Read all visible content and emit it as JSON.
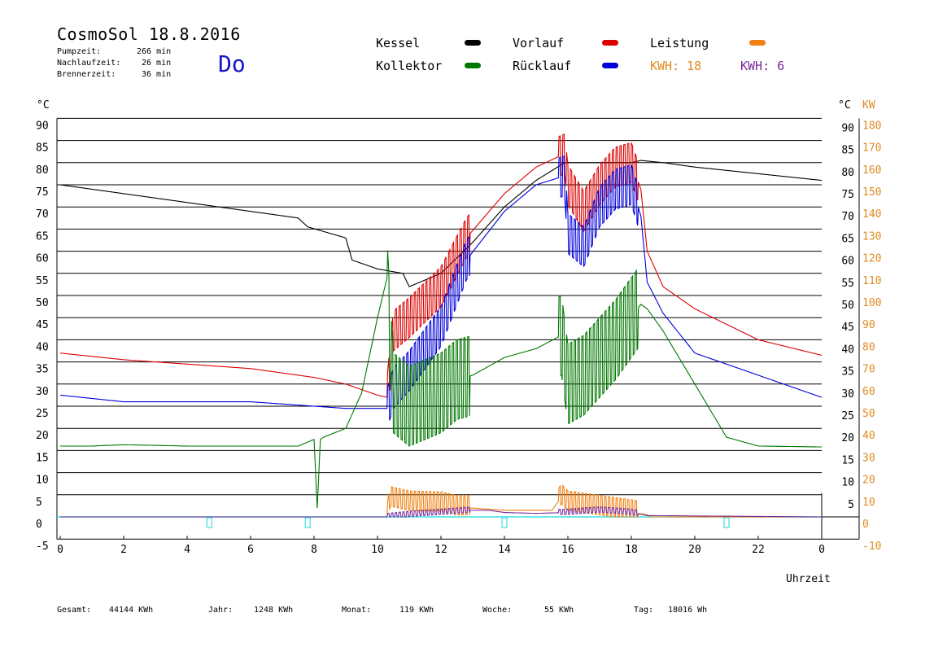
{
  "header": {
    "title": "CosmoSol 18.8.2016",
    "day": "Do",
    "stats": [
      {
        "label": "Pumpzeit:",
        "value": "266 min"
      },
      {
        "label": "Nachlaufzeit:",
        "value": "26 min"
      },
      {
        "label": "Brennerzeit:",
        "value": "36 min"
      }
    ]
  },
  "legend": {
    "items": [
      {
        "label": "Kessel",
        "color": "#000000"
      },
      {
        "label": "Vorlauf",
        "color": "#dd0000"
      },
      {
        "label": "Leistung",
        "color": "#f08010"
      },
      {
        "label": "Kollektor",
        "color": "#007700"
      },
      {
        "label": "Rücklauf",
        "color": "#0000dd"
      }
    ],
    "kwh1": {
      "text": "KWH: 18",
      "color": "#e08a20"
    },
    "kwh2": {
      "text": "KWH: 6",
      "color": "#7a2a9a"
    }
  },
  "footer": [
    {
      "label": "Gesamt:",
      "value": "44144 KWh"
    },
    {
      "label": "Jahr:",
      "value": "1248 KWh"
    },
    {
      "label": "Monat:",
      "value": "119 KWh"
    },
    {
      "label": "Woche:",
      "value": "55 KWh"
    },
    {
      "label": "Tag:",
      "value": "18016 Wh"
    }
  ],
  "chart_data": {
    "type": "line",
    "xlabel": "Uhrzeit",
    "ylabel_left": "°C",
    "ylabel_right_1": "°C",
    "ylabel_right_2": "KW",
    "xlim": [
      0,
      24
    ],
    "ylim": [
      -5,
      90
    ],
    "ylim_right_kw": [
      -10,
      180
    ],
    "x_ticks": [
      "0",
      "2",
      "4",
      "6",
      "8",
      "10",
      "12",
      "14",
      "16",
      "18",
      "20",
      "22",
      "0"
    ],
    "y_ticks_left": [
      "90",
      "85",
      "80",
      "75",
      "70",
      "65",
      "60",
      "55",
      "50",
      "45",
      "40",
      "35",
      "30",
      "25",
      "20",
      "15",
      "10",
      "5",
      "0",
      "-5"
    ],
    "y_ticks_right_c": [
      "90",
      "85",
      "80",
      "75",
      "70",
      "65",
      "60",
      "55",
      "50",
      "45",
      "40",
      "35",
      "30",
      "25",
      "20",
      "15",
      "10",
      "5"
    ],
    "y_ticks_right_kw": [
      "180",
      "170",
      "160",
      "150",
      "140",
      "130",
      "120",
      "110",
      "100",
      "90",
      "80",
      "70",
      "60",
      "50",
      "40",
      "30",
      "20",
      "10",
      "0",
      "-10"
    ],
    "grid": "horizontal",
    "series": [
      {
        "name": "Kessel",
        "color": "#000000",
        "x": [
          0,
          2,
          4,
          6,
          7.5,
          7.8,
          9,
          9.2,
          10,
          10.8,
          11,
          12,
          13,
          14,
          15,
          15.9,
          16.2,
          17,
          18,
          18.3,
          19,
          20,
          22,
          24
        ],
        "y": [
          75,
          73,
          71,
          69,
          67.5,
          65.5,
          63,
          58,
          56,
          55,
          52,
          55,
          62,
          70,
          76,
          80,
          80,
          80,
          80,
          80.5,
          80,
          79,
          77.5,
          76
        ]
      },
      {
        "name": "Vorlauf",
        "color": "#dd0000",
        "x": [
          0,
          2,
          4,
          6,
          8,
          9,
          10,
          10.3,
          10.5,
          11,
          12,
          12.8,
          14,
          15,
          15.9,
          16,
          16.5,
          17,
          17.5,
          18,
          18.3,
          18.5,
          19,
          20,
          22,
          24
        ],
        "y": [
          37,
          35.5,
          34.5,
          33.5,
          31.5,
          30,
          27.5,
          27,
          42,
          45,
          52,
          63,
          73,
          79,
          82,
          75,
          69,
          75,
          79,
          80,
          74,
          60,
          52,
          47,
          40,
          36.5
        ]
      },
      {
        "name": "Rücklauf",
        "color": "#0000dd",
        "x": [
          0,
          2,
          4,
          6,
          8,
          9,
          10,
          10.3,
          10.5,
          11,
          12,
          12.8,
          14,
          15,
          15.9,
          16,
          16.5,
          17,
          17.5,
          18,
          18.3,
          18.5,
          19,
          20,
          22,
          24
        ],
        "y": [
          27.5,
          26,
          26,
          26,
          25,
          24.5,
          24.5,
          24.5,
          29,
          33,
          43,
          58,
          69,
          75,
          77,
          64,
          61,
          70,
          74,
          75,
          68,
          53,
          46,
          37,
          32,
          27
        ]
      },
      {
        "name": "Kollektor",
        "color": "#007700",
        "x": [
          0,
          1,
          2,
          4,
          6,
          7.5,
          8,
          8.1,
          8.2,
          8.3,
          9,
          9.5,
          10,
          10.3,
          10.4,
          10.5,
          11,
          12,
          12.5,
          13,
          14,
          15,
          15.8,
          16,
          16.5,
          17,
          17.5,
          18,
          18.3,
          18.5,
          19,
          20,
          21,
          22,
          24
        ],
        "y": [
          16,
          16,
          16.3,
          16,
          16,
          16,
          17.5,
          2,
          17.5,
          18,
          20,
          28,
          45,
          54,
          40,
          28,
          25,
          28,
          31,
          32,
          36,
          38,
          41,
          30,
          32,
          36,
          40,
          45,
          48,
          47,
          42,
          30,
          18,
          16,
          15.8
        ]
      },
      {
        "name": "Leistung",
        "color": "#f08010",
        "x": [
          0,
          10.3,
          10.4,
          11,
          12,
          12.5,
          13,
          14,
          15.5,
          15.8,
          16,
          17,
          18,
          18.5,
          18.6,
          24
        ],
        "y": [
          0,
          0,
          4,
          3,
          2.8,
          2,
          2,
          1.5,
          1.5,
          4.5,
          3,
          2,
          1,
          0.5,
          0,
          0
        ]
      },
      {
        "name": "KWH: 6",
        "color": "#7a2a9a",
        "x": [
          0,
          10.3,
          11,
          12,
          13,
          13.5,
          14,
          15,
          16,
          17,
          18,
          18.5,
          24
        ],
        "y": [
          0,
          0,
          0.5,
          1,
          1.5,
          1.5,
          1,
          0.8,
          1,
          1.5,
          1,
          0.3,
          0
        ]
      }
    ],
    "oscillation_windows": [
      [
        10.3,
        12.9
      ],
      [
        15.7,
        18.2
      ]
    ]
  }
}
